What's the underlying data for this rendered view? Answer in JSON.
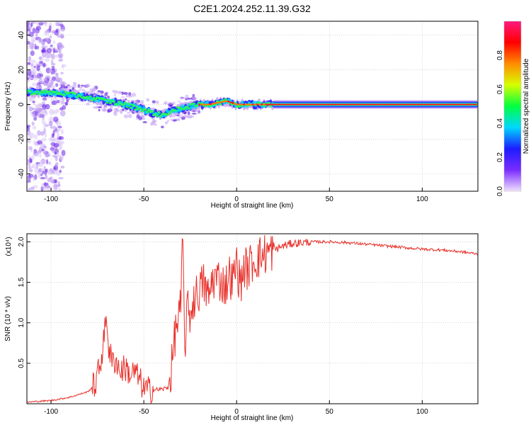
{
  "title": "C2E1.2024.252.11.39.G32",
  "chart_data": [
    {
      "type": "heatmap",
      "xlabel": "Height of straight line (km)",
      "ylabel": "Frequency (Hz)",
      "xlim": [
        -113,
        130
      ],
      "ylim": [
        -50,
        48
      ],
      "xticks": [
        -100,
        -50,
        0,
        50,
        100
      ],
      "yticks": [
        40,
        20,
        0,
        -20,
        -40
      ],
      "grid": true,
      "ridge": {
        "x": [
          -113,
          -105,
          -100,
          -90,
          -80,
          -70,
          -60,
          -50,
          -45,
          -40,
          -35,
          -30,
          -25,
          -20,
          -15,
          -10,
          -5,
          0,
          5,
          10,
          20,
          30,
          60,
          100,
          130
        ],
        "y": [
          7,
          7,
          7,
          6,
          4,
          2,
          0,
          -3,
          -5,
          -6,
          -4,
          -2,
          -1,
          0,
          0,
          1,
          2,
          0,
          0,
          0,
          0,
          0,
          0,
          0,
          0
        ]
      },
      "colorbar": {
        "label": "Normalized spectral amplitude",
        "range": [
          0,
          1
        ],
        "ticks": [
          "0.0",
          "0.2",
          "0.4",
          "0.6",
          "0.8"
        ],
        "colors": [
          "#f0e0ff",
          "#7a2cff",
          "#1c1cff",
          "#00d7ff",
          "#00ff40",
          "#d6ff00",
          "#ff8c00",
          "#ff0000",
          "#ff1a80"
        ]
      }
    },
    {
      "type": "line",
      "xlabel": "Height of straight line (km)",
      "ylabel": "SNR (10 * v/v)",
      "multiplier": "(x10⁴)",
      "xlim": [
        -113,
        130
      ],
      "ylim": [
        0,
        2.1
      ],
      "xticks": [
        -100,
        -50,
        0,
        50,
        100
      ],
      "yticks": [
        "0.5",
        "1.0",
        "1.5",
        "2.0"
      ],
      "grid": true,
      "color": "#e8302a",
      "series": [
        {
          "x": [
            -113,
            -100,
            -90,
            -80,
            -76,
            -73,
            -71,
            -70,
            -69,
            -67,
            -65,
            -63,
            -60,
            -57,
            -55,
            -52,
            -50,
            -45,
            -40,
            -37,
            -35,
            -33,
            -31,
            -30,
            -29,
            -28,
            -27,
            -25,
            -23,
            -20,
            -18,
            -15,
            -13,
            -10,
            -8,
            -6,
            -4,
            -2,
            0,
            2,
            4,
            6,
            8,
            10,
            15,
            20,
            25,
            30,
            40,
            50,
            60,
            70,
            80,
            90,
            100,
            110,
            120,
            130
          ],
          "y": [
            0.02,
            0.04,
            0.08,
            0.15,
            0.25,
            0.55,
            0.9,
            1.1,
            0.7,
            0.5,
            0.55,
            0.4,
            0.45,
            0.35,
            0.4,
            0.28,
            0.18,
            0.17,
            0.18,
            0.2,
            0.45,
            0.9,
            1.1,
            1.2,
            2.1,
            0.6,
            1.15,
            1.1,
            1.3,
            1.4,
            1.5,
            1.3,
            1.55,
            1.55,
            1.5,
            1.45,
            1.6,
            1.5,
            1.75,
            1.45,
            1.7,
            1.65,
            1.75,
            1.78,
            1.85,
            1.9,
            1.95,
            1.98,
            2.0,
            2.0,
            1.99,
            1.97,
            1.95,
            1.93,
            1.91,
            1.9,
            1.88,
            1.85
          ]
        }
      ]
    }
  ]
}
